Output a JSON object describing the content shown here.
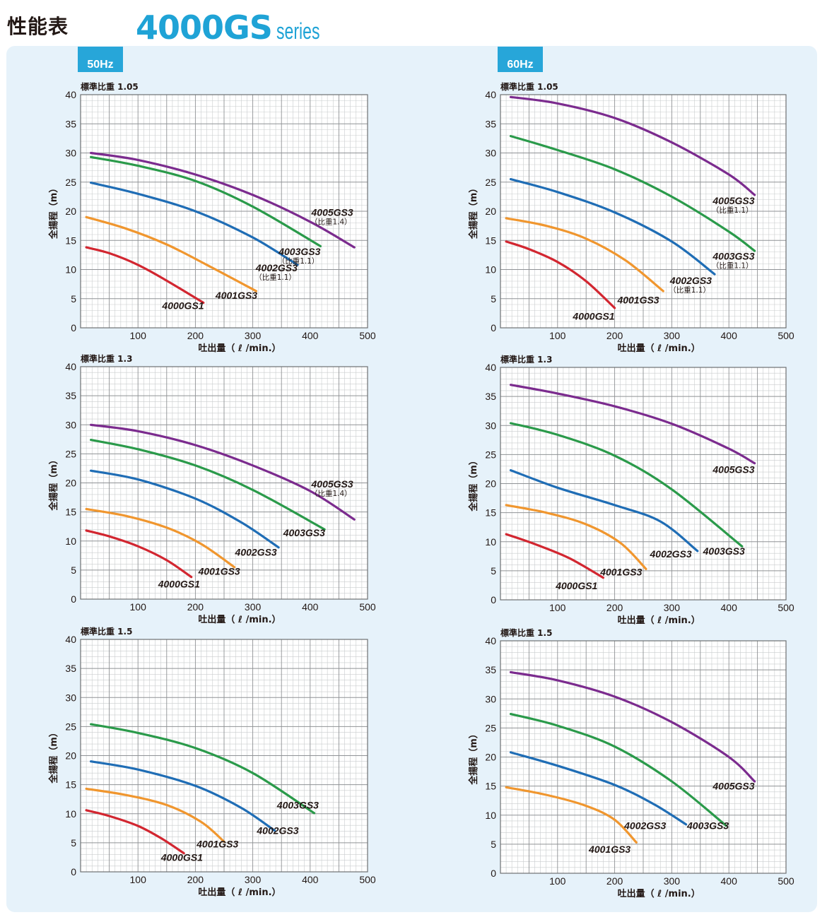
{
  "header": {
    "title": "性能表",
    "series_model": "4000GS",
    "series_suffix": "series"
  },
  "tabs": {
    "hz50": "50Hz",
    "hz60": "60Hz"
  },
  "colors": {
    "4000GS1": "#d22630",
    "4001GS3": "#f0962e",
    "4002GS3": "#1f6db5",
    "4003GS3": "#2a9a4a",
    "4005GS3": "#7b2b8e",
    "panel": "#e6f2fa",
    "tab": "#27a6d9"
  },
  "chart_data": [
    {
      "type": "line",
      "id": "c50a",
      "title": "標準比重 1.05",
      "xlabel": "吐出量（ ℓ /min.）",
      "ylabel": "全揚程（m）",
      "xlim": [
        0,
        500
      ],
      "ylim": [
        0,
        40
      ],
      "xticks": [
        "100",
        "200",
        "300",
        "400",
        "500"
      ],
      "yticks": [
        "0",
        "5",
        "10",
        "15",
        "20",
        "25",
        "30",
        "35",
        "40"
      ],
      "grid": true,
      "series": [
        {
          "name": "4000GS1",
          "label_x": 215,
          "label_y": 3.2,
          "points": [
            [
              10,
              13.8
            ],
            [
              50,
              12.8
            ],
            [
              100,
              10.8
            ],
            [
              150,
              8.1
            ],
            [
              214,
              4.3
            ]
          ]
        },
        {
          "name": "4001GS3",
          "label_x": 308,
          "label_y": 5.0,
          "points": [
            [
              10,
              19
            ],
            [
              80,
              17
            ],
            [
              150,
              14.3
            ],
            [
              220,
              10.8
            ],
            [
              306,
              6.3
            ]
          ]
        },
        {
          "name": "4002GS3",
          "label_x": 378,
          "label_y": 9.7,
          "sub": "（比重1.1）",
          "points": [
            [
              18,
              24.9
            ],
            [
              100,
              23
            ],
            [
              200,
              20
            ],
            [
              300,
              15.5
            ],
            [
              378,
              10.8
            ]
          ]
        },
        {
          "name": "4003GS3",
          "label_x": 418,
          "label_y": 12.5,
          "sub": "（比重1.1）",
          "points": [
            [
              18,
              29.3
            ],
            [
              100,
              27.8
            ],
            [
              200,
              25.2
            ],
            [
              300,
              20.8
            ],
            [
              418,
              14
            ]
          ]
        },
        {
          "name": "4005GS3",
          "label_x": 475,
          "label_y": 19.2,
          "sub": "（比重1.4）",
          "points": [
            [
              18,
              30
            ],
            [
              100,
              28.8
            ],
            [
              200,
              26.3
            ],
            [
              300,
              22.8
            ],
            [
              400,
              18.2
            ],
            [
              477,
              13.8
            ]
          ]
        }
      ]
    },
    {
      "type": "line",
      "id": "c60a",
      "title": "標準比重 1.05",
      "xlabel": "吐出量（ ℓ /min.）",
      "ylabel": "全揚程（m）",
      "xlim": [
        0,
        500
      ],
      "ylim": [
        0,
        40
      ],
      "xticks": [
        "100",
        "200",
        "300",
        "400",
        "500"
      ],
      "yticks": [
        "0",
        "5",
        "10",
        "15",
        "20",
        "25",
        "30",
        "35",
        "40"
      ],
      "grid": true,
      "series": [
        {
          "name": "4000GS1",
          "label_x": 200,
          "label_y": 1.4,
          "points": [
            [
              10,
              14.8
            ],
            [
              50,
              13.5
            ],
            [
              100,
              11.3
            ],
            [
              150,
              8
            ],
            [
              200,
              3.4
            ]
          ]
        },
        {
          "name": "4001GS3",
          "label_x": 278,
          "label_y": 4.2,
          "points": [
            [
              10,
              18.8
            ],
            [
              80,
              17.5
            ],
            [
              150,
              15.3
            ],
            [
              220,
              11.5
            ],
            [
              285,
              6.3
            ]
          ]
        },
        {
          "name": "4002GS3",
          "label_x": 370,
          "label_y": 7.5,
          "sub": "（比重1.1）",
          "points": [
            [
              18,
              25.5
            ],
            [
              100,
              23.3
            ],
            [
              200,
              19.8
            ],
            [
              300,
              14.8
            ],
            [
              375,
              9.2
            ]
          ]
        },
        {
          "name": "4003GS3",
          "label_x": 445,
          "label_y": 11.7,
          "sub": "（比重1.1）",
          "points": [
            [
              18,
              32.9
            ],
            [
              100,
              30.5
            ],
            [
              200,
              27.2
            ],
            [
              300,
              22.5
            ],
            [
              400,
              16.5
            ],
            [
              445,
              13.2
            ]
          ]
        },
        {
          "name": "4005GS3",
          "label_x": 445,
          "label_y": 21.2,
          "sub": "（比重1.1）",
          "points": [
            [
              18,
              39.6
            ],
            [
              100,
              38.5
            ],
            [
              200,
              36
            ],
            [
              300,
              31.8
            ],
            [
              400,
              26.3
            ],
            [
              445,
              22.8
            ]
          ]
        }
      ]
    },
    {
      "type": "line",
      "id": "c50b",
      "title": "標準比重 1.3",
      "xlabel": "吐出量（ ℓ /min.）",
      "ylabel": "全揚程（m）",
      "xlim": [
        0,
        500
      ],
      "ylim": [
        0,
        40
      ],
      "xticks": [
        "100",
        "200",
        "300",
        "400",
        "500"
      ],
      "yticks": [
        "0",
        "5",
        "10",
        "15",
        "20",
        "25",
        "30",
        "35",
        "40"
      ],
      "grid": true,
      "series": [
        {
          "name": "4000GS1",
          "label_x": 208,
          "label_y": 2.0,
          "points": [
            [
              10,
              11.8
            ],
            [
              50,
              10.8
            ],
            [
              100,
              9.1
            ],
            [
              150,
              6.7
            ],
            [
              193,
              3.8
            ]
          ]
        },
        {
          "name": "4001GS3",
          "label_x": 278,
          "label_y": 4.2,
          "points": [
            [
              10,
              15.5
            ],
            [
              80,
              14.3
            ],
            [
              150,
              12.3
            ],
            [
              210,
              9.5
            ],
            [
              268,
              5.5
            ]
          ]
        },
        {
          "name": "4002GS3",
          "label_x": 342,
          "label_y": 7.5,
          "points": [
            [
              18,
              22.1
            ],
            [
              100,
              20.6
            ],
            [
              200,
              17.3
            ],
            [
              280,
              13.2
            ],
            [
              345,
              8.9
            ]
          ]
        },
        {
          "name": "4003GS3",
          "label_x": 426,
          "label_y": 10.8,
          "points": [
            [
              18,
              27.4
            ],
            [
              100,
              25.8
            ],
            [
              200,
              23
            ],
            [
              300,
              18.8
            ],
            [
              425,
              12
            ]
          ]
        },
        {
          "name": "4005GS3",
          "label_x": 475,
          "label_y": 19.2,
          "sub": "（比重1.4）",
          "points": [
            [
              18,
              30
            ],
            [
              100,
              28.9
            ],
            [
              200,
              26.5
            ],
            [
              300,
              23
            ],
            [
              400,
              18.6
            ],
            [
              477,
              13.7
            ]
          ]
        }
      ]
    },
    {
      "type": "line",
      "id": "c60b",
      "title": "標準比重 1.3",
      "xlabel": "吐出量（ ℓ /min.）",
      "ylabel": "全揚程（m）",
      "xlim": [
        0,
        500
      ],
      "ylim": [
        0,
        40
      ],
      "xticks": [
        "100",
        "200",
        "300",
        "400",
        "500"
      ],
      "yticks": [
        "0",
        "5",
        "10",
        "15",
        "20",
        "25",
        "30",
        "35",
        "40"
      ],
      "grid": true,
      "series": [
        {
          "name": "4000GS1",
          "label_x": 170,
          "label_y": 1.8,
          "points": [
            [
              10,
              11.3
            ],
            [
              60,
              9.6
            ],
            [
              120,
              7.2
            ],
            [
              180,
              3.8
            ]
          ]
        },
        {
          "name": "4001GS3",
          "label_x": 248,
          "label_y": 4.2,
          "points": [
            [
              10,
              16.3
            ],
            [
              80,
              15
            ],
            [
              150,
              13
            ],
            [
              210,
              9.8
            ],
            [
              255,
              5.3
            ]
          ]
        },
        {
          "name": "4002GS3",
          "label_x": 335,
          "label_y": 7.3,
          "points": [
            [
              18,
              22.3
            ],
            [
              100,
              19.3
            ],
            [
              200,
              16.3
            ],
            [
              280,
              13.5
            ],
            [
              345,
              8.4
            ]
          ]
        },
        {
          "name": "4003GS3",
          "label_x": 428,
          "label_y": 7.8,
          "points": [
            [
              18,
              30.4
            ],
            [
              100,
              28.4
            ],
            [
              200,
              24.8
            ],
            [
              300,
              19
            ],
            [
              423,
              9.2
            ]
          ]
        },
        {
          "name": "4005GS3",
          "label_x": 445,
          "label_y": 21.8,
          "points": [
            [
              18,
              37
            ],
            [
              100,
              35.5
            ],
            [
              200,
              33.3
            ],
            [
              300,
              30.3
            ],
            [
              400,
              26
            ],
            [
              445,
              23.5
            ]
          ]
        }
      ]
    },
    {
      "type": "line",
      "id": "c50c",
      "title": "標準比重 1.5",
      "xlabel": "吐出量（ ℓ /min.）",
      "ylabel": "全揚程（m）",
      "xlim": [
        0,
        500
      ],
      "ylim": [
        0,
        40
      ],
      "xticks": [
        "100",
        "200",
        "300",
        "400",
        "500"
      ],
      "yticks": [
        "0",
        "5",
        "10",
        "15",
        "20",
        "25",
        "30",
        "35",
        "40"
      ],
      "grid": true,
      "series": [
        {
          "name": "4000GS1",
          "label_x": 213,
          "label_y": 1.9,
          "points": [
            [
              10,
              10.6
            ],
            [
              50,
              9.6
            ],
            [
              100,
              7.9
            ],
            [
              140,
              5.8
            ],
            [
              180,
              3.2
            ]
          ]
        },
        {
          "name": "4001GS3",
          "label_x": 275,
          "label_y": 4.2,
          "points": [
            [
              10,
              14.3
            ],
            [
              80,
              13.2
            ],
            [
              150,
              11.5
            ],
            [
              210,
              8.6
            ],
            [
              250,
              5.2
            ]
          ]
        },
        {
          "name": "4002GS3",
          "label_x": 380,
          "label_y": 6.5,
          "points": [
            [
              18,
              19
            ],
            [
              100,
              17.6
            ],
            [
              200,
              14.8
            ],
            [
              280,
              11
            ],
            [
              338,
              7.1
            ]
          ]
        },
        {
          "name": "4003GS3",
          "label_x": 415,
          "label_y": 10.9,
          "points": [
            [
              18,
              25.4
            ],
            [
              100,
              23.9
            ],
            [
              200,
              21.3
            ],
            [
              300,
              17
            ],
            [
              407,
              10.1
            ]
          ]
        }
      ]
    },
    {
      "type": "line",
      "id": "c60c",
      "title": "標準比重 1.5",
      "xlabel": "吐出量（ ℓ /min.）",
      "ylabel": "全揚程（m）",
      "xlim": [
        0,
        500
      ],
      "ylim": [
        0,
        40
      ],
      "xticks": [
        "100",
        "200",
        "300",
        "400",
        "500"
      ],
      "yticks": [
        "0",
        "5",
        "10",
        "15",
        "20",
        "25",
        "30",
        "35",
        "40"
      ],
      "grid": true,
      "series": [
        {
          "name": "4001GS3",
          "label_x": 228,
          "label_y": 3.5,
          "points": [
            [
              10,
              14.8
            ],
            [
              80,
              13.5
            ],
            [
              150,
              11.6
            ],
            [
              200,
              9.2
            ],
            [
              238,
              5.3
            ]
          ]
        },
        {
          "name": "4002GS3",
          "label_x": 290,
          "label_y": 7.6,
          "points": [
            [
              18,
              20.8
            ],
            [
              100,
              18.5
            ],
            [
              200,
              15.2
            ],
            [
              270,
              11.8
            ],
            [
              325,
              8.4
            ]
          ]
        },
        {
          "name": "4003GS3",
          "label_x": 400,
          "label_y": 7.6,
          "points": [
            [
              18,
              27.4
            ],
            [
              100,
              25.4
            ],
            [
              200,
              21.8
            ],
            [
              300,
              15.8
            ],
            [
              395,
              8.2
            ]
          ]
        },
        {
          "name": "4005GS3",
          "label_x": 445,
          "label_y": 14.4,
          "points": [
            [
              18,
              34.6
            ],
            [
              100,
              33.2
            ],
            [
              200,
              30.4
            ],
            [
              300,
              26
            ],
            [
              400,
              20
            ],
            [
              445,
              15.8
            ]
          ]
        }
      ]
    }
  ]
}
